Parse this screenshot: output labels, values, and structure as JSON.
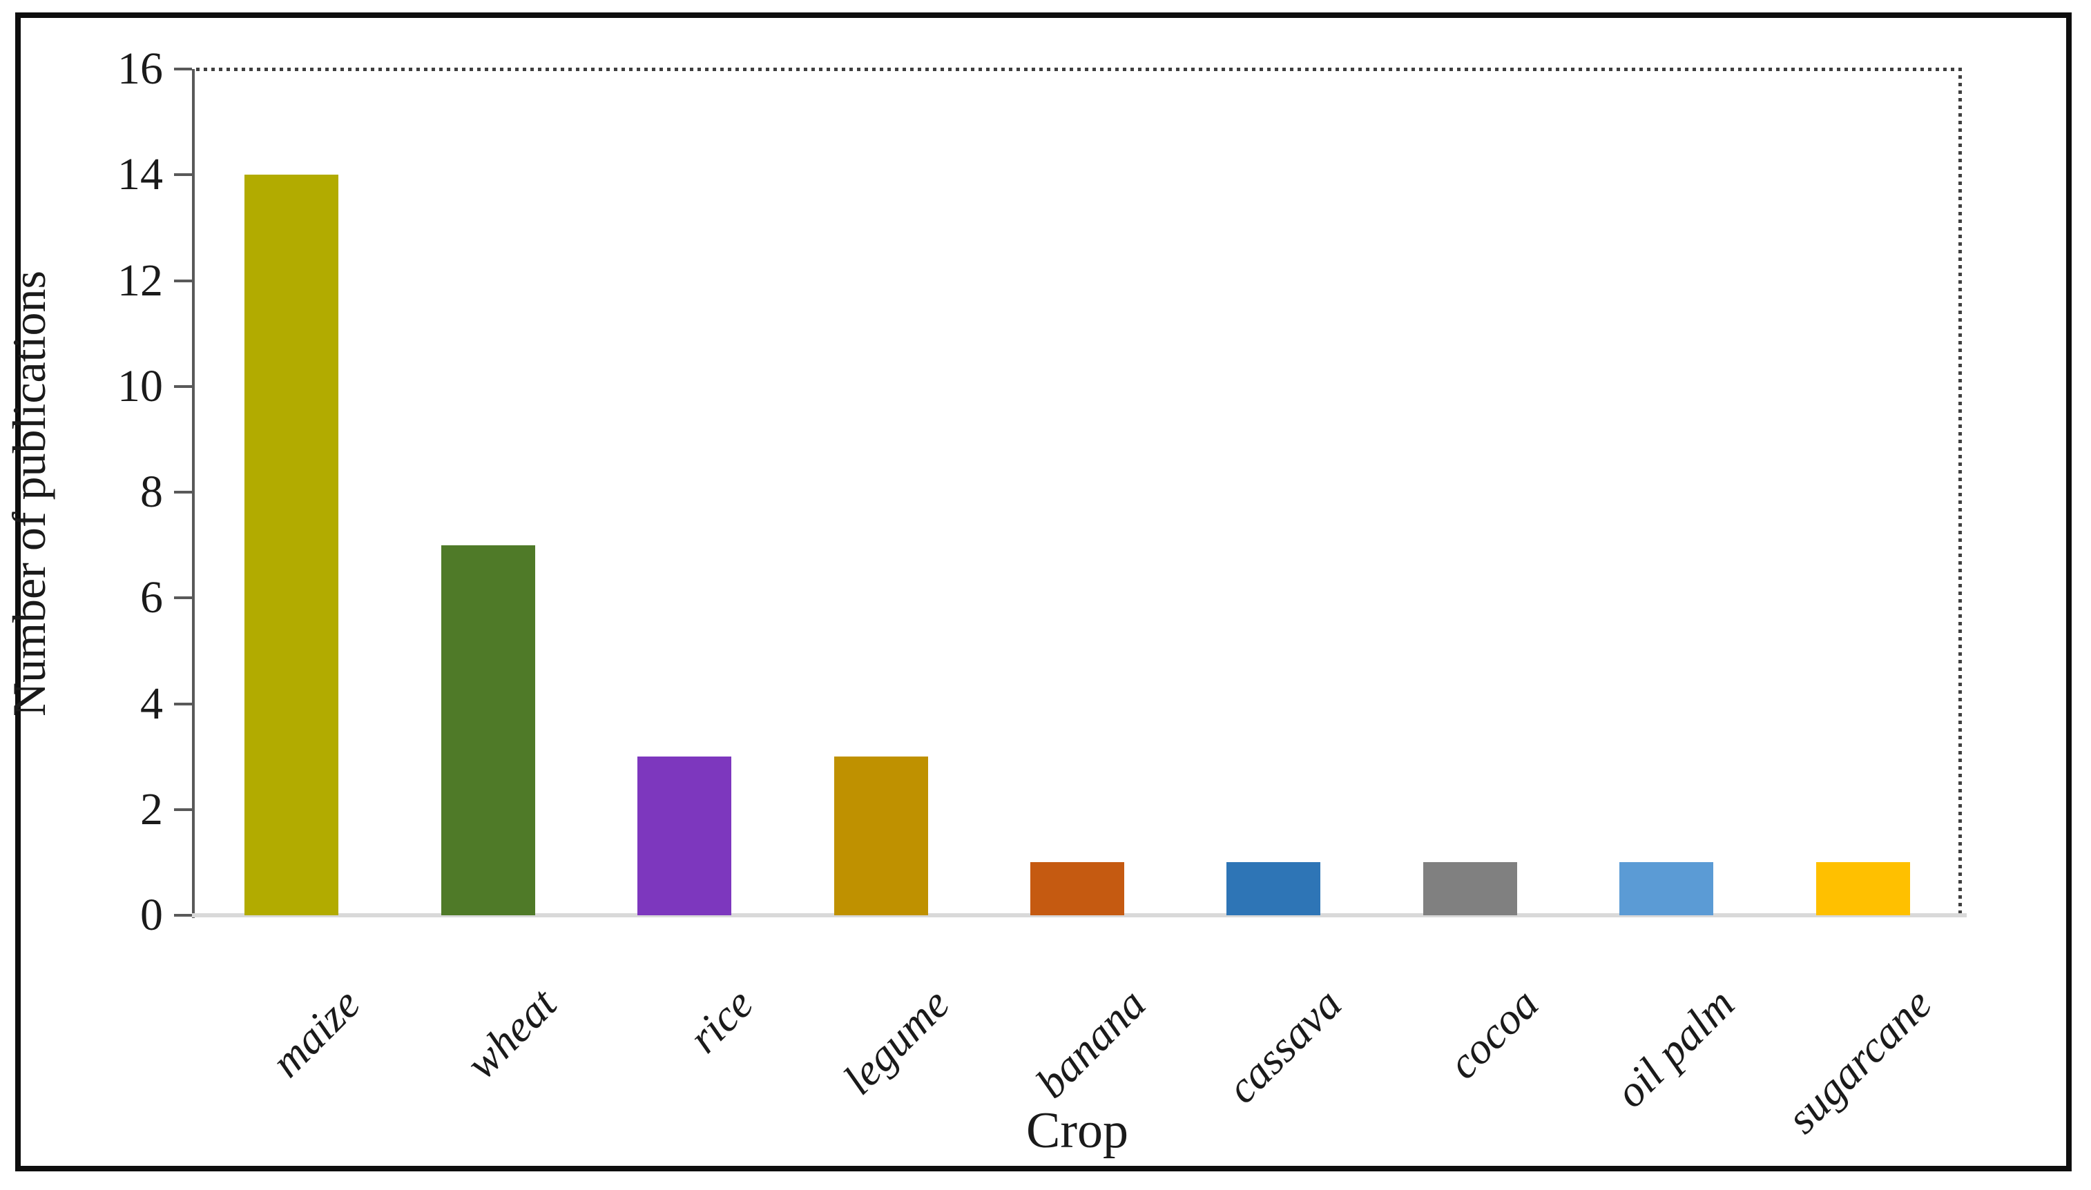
{
  "figure": {
    "y_axis_label": "Number of publications",
    "x_axis_label": "Crop"
  },
  "chart_data": {
    "type": "bar",
    "title": "",
    "xlabel": "Crop",
    "ylabel": "Number of publications",
    "categories": [
      "maize",
      "wheat",
      "rice",
      "legume",
      "banana",
      "cassava",
      "cocoa",
      "oil palm",
      "sugarcane"
    ],
    "values": [
      14,
      7,
      3,
      3,
      1,
      1,
      1,
      1,
      1
    ],
    "bar_colors": [
      "#B2AB00",
      "#4F7A28",
      "#7D37BE",
      "#BF9100",
      "#C55A11",
      "#2E75B6",
      "#808080",
      "#5B9BD5",
      "#FFC000"
    ],
    "ylim": [
      0,
      16
    ],
    "yticks": [
      0,
      2,
      4,
      6,
      8,
      10,
      12,
      14,
      16
    ],
    "grid": false,
    "legend": "none",
    "plot_border_style": "dotted top and right",
    "axis_color": "#595959",
    "baseline_color": "#D9D9D9",
    "dotted_border_color": "#3F3F3F",
    "text_color": "#1A1A1A"
  }
}
